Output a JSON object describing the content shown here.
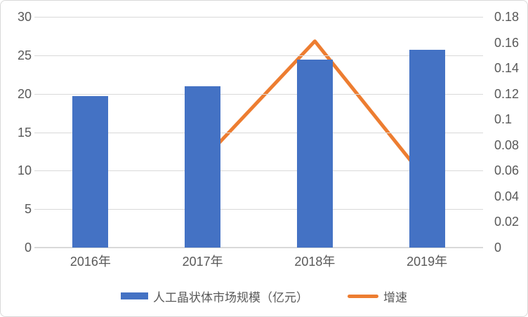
{
  "chart_data": {
    "type": "bar",
    "subtype": "bar-line-combo",
    "title": "",
    "categories": [
      "2016年",
      "2017年",
      "2018年",
      "2019年"
    ],
    "series": [
      {
        "name": "人工晶状体市场规模（亿元）",
        "type": "bar",
        "axis": "left",
        "values": [
          19.7,
          21.0,
          24.4,
          25.7
        ],
        "color": "#4472C4"
      },
      {
        "name": "增速",
        "type": "line",
        "axis": "right",
        "values": [
          null,
          0.068,
          0.161,
          0.052
        ],
        "color": "#ED7D31"
      }
    ],
    "left_axis": {
      "min": 0,
      "max": 30,
      "tick_labels": [
        "0",
        "5",
        "10",
        "15",
        "20",
        "25",
        "30"
      ]
    },
    "right_axis": {
      "min": 0,
      "max": 0.18,
      "tick_labels": [
        "0",
        "0.02",
        "0.04",
        "0.06",
        "0.08",
        "0.1",
        "0.12",
        "0.14",
        "0.16",
        "0.18"
      ]
    },
    "grid": true,
    "legend_position": "bottom"
  },
  "colors": {
    "bar": "#4472C4",
    "line": "#ED7D31",
    "grid": "#D9D9D9",
    "axis_line": "#D9D9D9",
    "text": "#595959",
    "background": "#FFFFFF",
    "border": "#D9D9D9"
  }
}
